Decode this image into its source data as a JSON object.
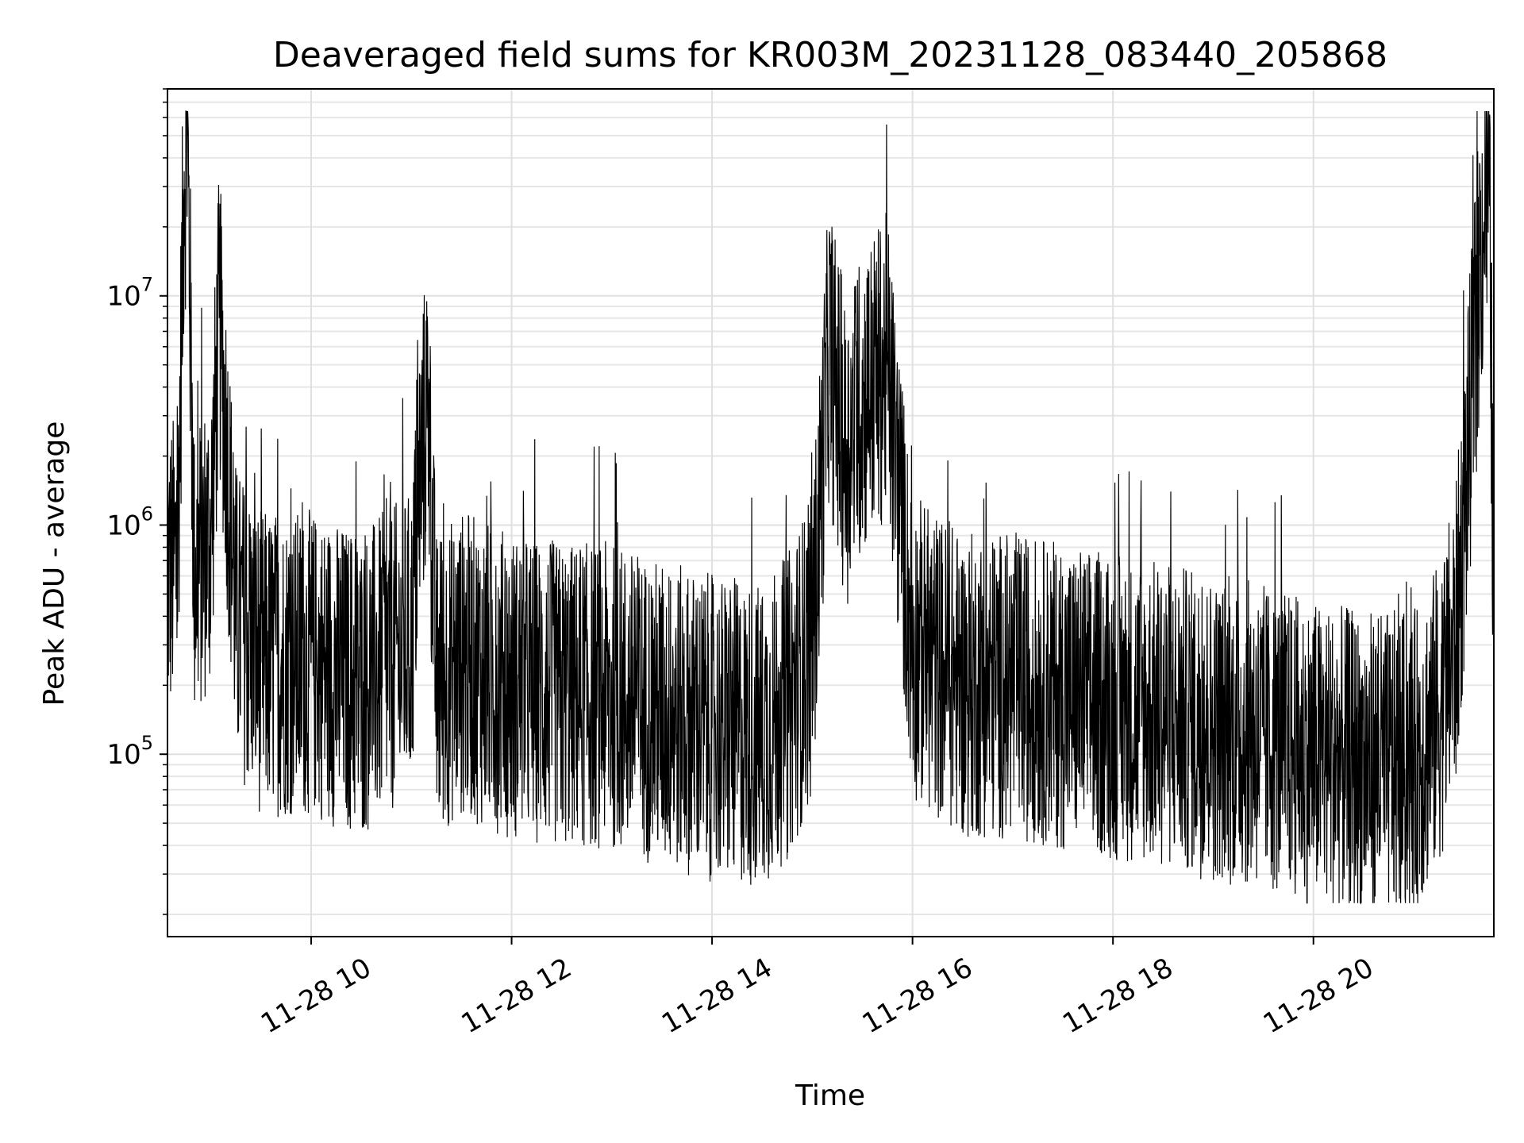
{
  "chart_data": {
    "type": "line",
    "title": "Deaveraged field sums for KR003M_20231128_083440_205868",
    "xlabel": "Time",
    "ylabel": "Peak ADU - average",
    "yscale": "log",
    "xlim": [
      "2023-11-28 08:34",
      "2023-11-28 21:48"
    ],
    "ylim": [
      16000,
      80000000
    ],
    "grid": true,
    "line_color": "#000000",
    "x_ticks": [
      {
        "value": "2023-11-28 10:00",
        "label": "11-28 10"
      },
      {
        "value": "2023-11-28 12:00",
        "label": "11-28 12"
      },
      {
        "value": "2023-11-28 14:00",
        "label": "11-28 14"
      },
      {
        "value": "2023-11-28 16:00",
        "label": "11-28 16"
      },
      {
        "value": "2023-11-28 18:00",
        "label": "11-28 18"
      },
      {
        "value": "2023-11-28 20:00",
        "label": "11-28 20"
      }
    ],
    "y_ticks": [
      {
        "value": 100000,
        "base": "10",
        "exp": "5"
      },
      {
        "value": 1000000,
        "base": "10",
        "exp": "6"
      },
      {
        "value": 10000000,
        "base": "10",
        "exp": "7"
      }
    ],
    "series": [
      {
        "x": [
          "2023-11-28 08:34",
          "2023-11-28 08:40",
          "2023-11-28 08:44",
          "2023-11-28 08:46",
          "2023-11-28 08:50",
          "2023-11-28 09:00",
          "2023-11-28 09:05",
          "2023-11-28 09:15",
          "2023-11-28 09:30",
          "2023-11-28 10:00",
          "2023-11-28 10:30",
          "2023-11-28 10:45",
          "2023-11-28 11:00",
          "2023-11-28 11:05",
          "2023-11-28 11:10",
          "2023-11-28 11:15",
          "2023-11-28 11:30",
          "2023-11-28 12:00",
          "2023-11-28 12:30",
          "2023-11-28 13:00",
          "2023-11-28 13:30",
          "2023-11-28 14:00",
          "2023-11-28 14:30",
          "2023-11-28 14:45",
          "2023-11-28 15:00",
          "2023-11-28 15:10",
          "2023-11-28 15:20",
          "2023-11-28 15:30",
          "2023-11-28 15:45",
          "2023-11-28 16:00",
          "2023-11-28 16:30",
          "2023-11-28 17:00",
          "2023-11-28 17:30",
          "2023-11-28 18:00",
          "2023-11-28 18:30",
          "2023-11-28 19:00",
          "2023-11-28 19:30",
          "2023-11-28 20:00",
          "2023-11-28 20:30",
          "2023-11-28 21:00",
          "2023-11-28 21:15",
          "2023-11-28 21:25",
          "2023-11-28 21:30",
          "2023-11-28 21:40",
          "2023-11-28 21:45",
          "2023-11-28 21:48"
        ],
        "y": [
          600000,
          700000,
          35000000,
          50000000,
          600000,
          900000,
          8000000,
          400000,
          250000,
          250000,
          200000,
          250000,
          300000,
          1500000,
          3500000,
          200000,
          250000,
          200000,
          180000,
          180000,
          150000,
          130000,
          120000,
          160000,
          300000,
          6000000,
          2000000,
          3500000,
          5000000,
          300000,
          200000,
          200000,
          180000,
          160000,
          150000,
          130000,
          120000,
          100000,
          90000,
          90000,
          150000,
          300000,
          1000000,
          15000000,
          35000000,
          500000
        ]
      }
    ]
  }
}
